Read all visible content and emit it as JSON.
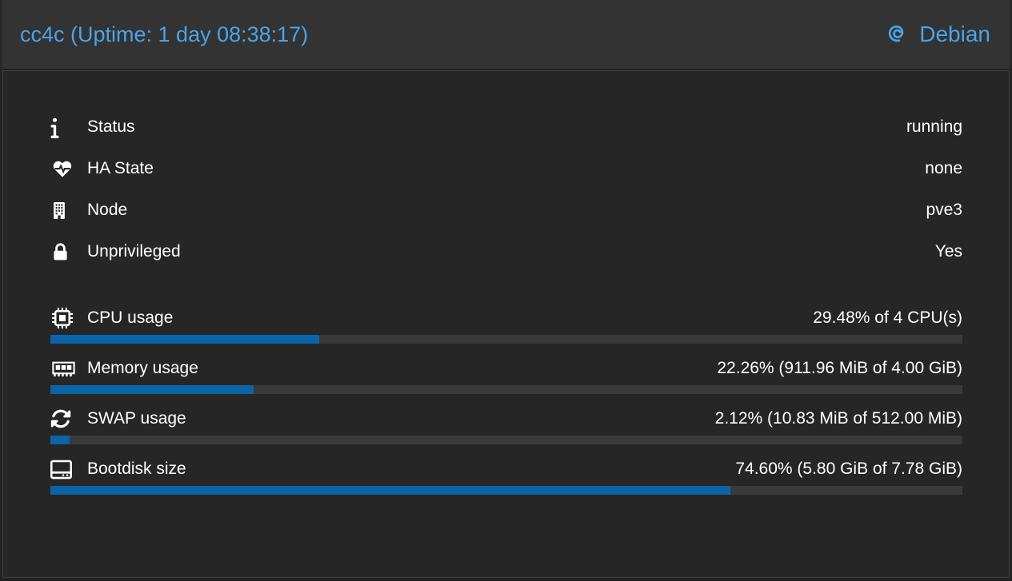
{
  "header": {
    "title": "cc4c (Uptime: 1 day 08:38:17)",
    "os_label": "Debian",
    "os_logo_icon": "debian-logo-icon"
  },
  "colors": {
    "accent": "#4aa3e8",
    "bar_fill": "#0b64a8",
    "bar_track": "#3a3a3a",
    "panel_bg": "#262626",
    "titlebar_bg": "#333333",
    "text": "#ffffff"
  },
  "info_rows": [
    {
      "icon": "info-icon",
      "label": "Status",
      "value": "running"
    },
    {
      "icon": "heartbeat-icon",
      "label": "HA State",
      "value": "none"
    },
    {
      "icon": "building-icon",
      "label": "Node",
      "value": "pve3"
    },
    {
      "icon": "lock-icon",
      "label": "Unprivileged",
      "value": "Yes"
    }
  ],
  "usage_rows": [
    {
      "icon": "cpu-icon",
      "label": "CPU usage",
      "value": "29.48% of 4 CPU(s)",
      "percent": 29.48
    },
    {
      "icon": "memory-icon",
      "label": "Memory usage",
      "value": "22.26% (911.96 MiB of 4.00 GiB)",
      "percent": 22.26
    },
    {
      "icon": "swap-icon",
      "label": "SWAP usage",
      "value": "2.12% (10.83 MiB of 512.00 MiB)",
      "percent": 2.12
    },
    {
      "icon": "disk-icon",
      "label": "Bootdisk size",
      "value": "74.60% (5.80 GiB of 7.78 GiB)",
      "percent": 74.6
    }
  ]
}
